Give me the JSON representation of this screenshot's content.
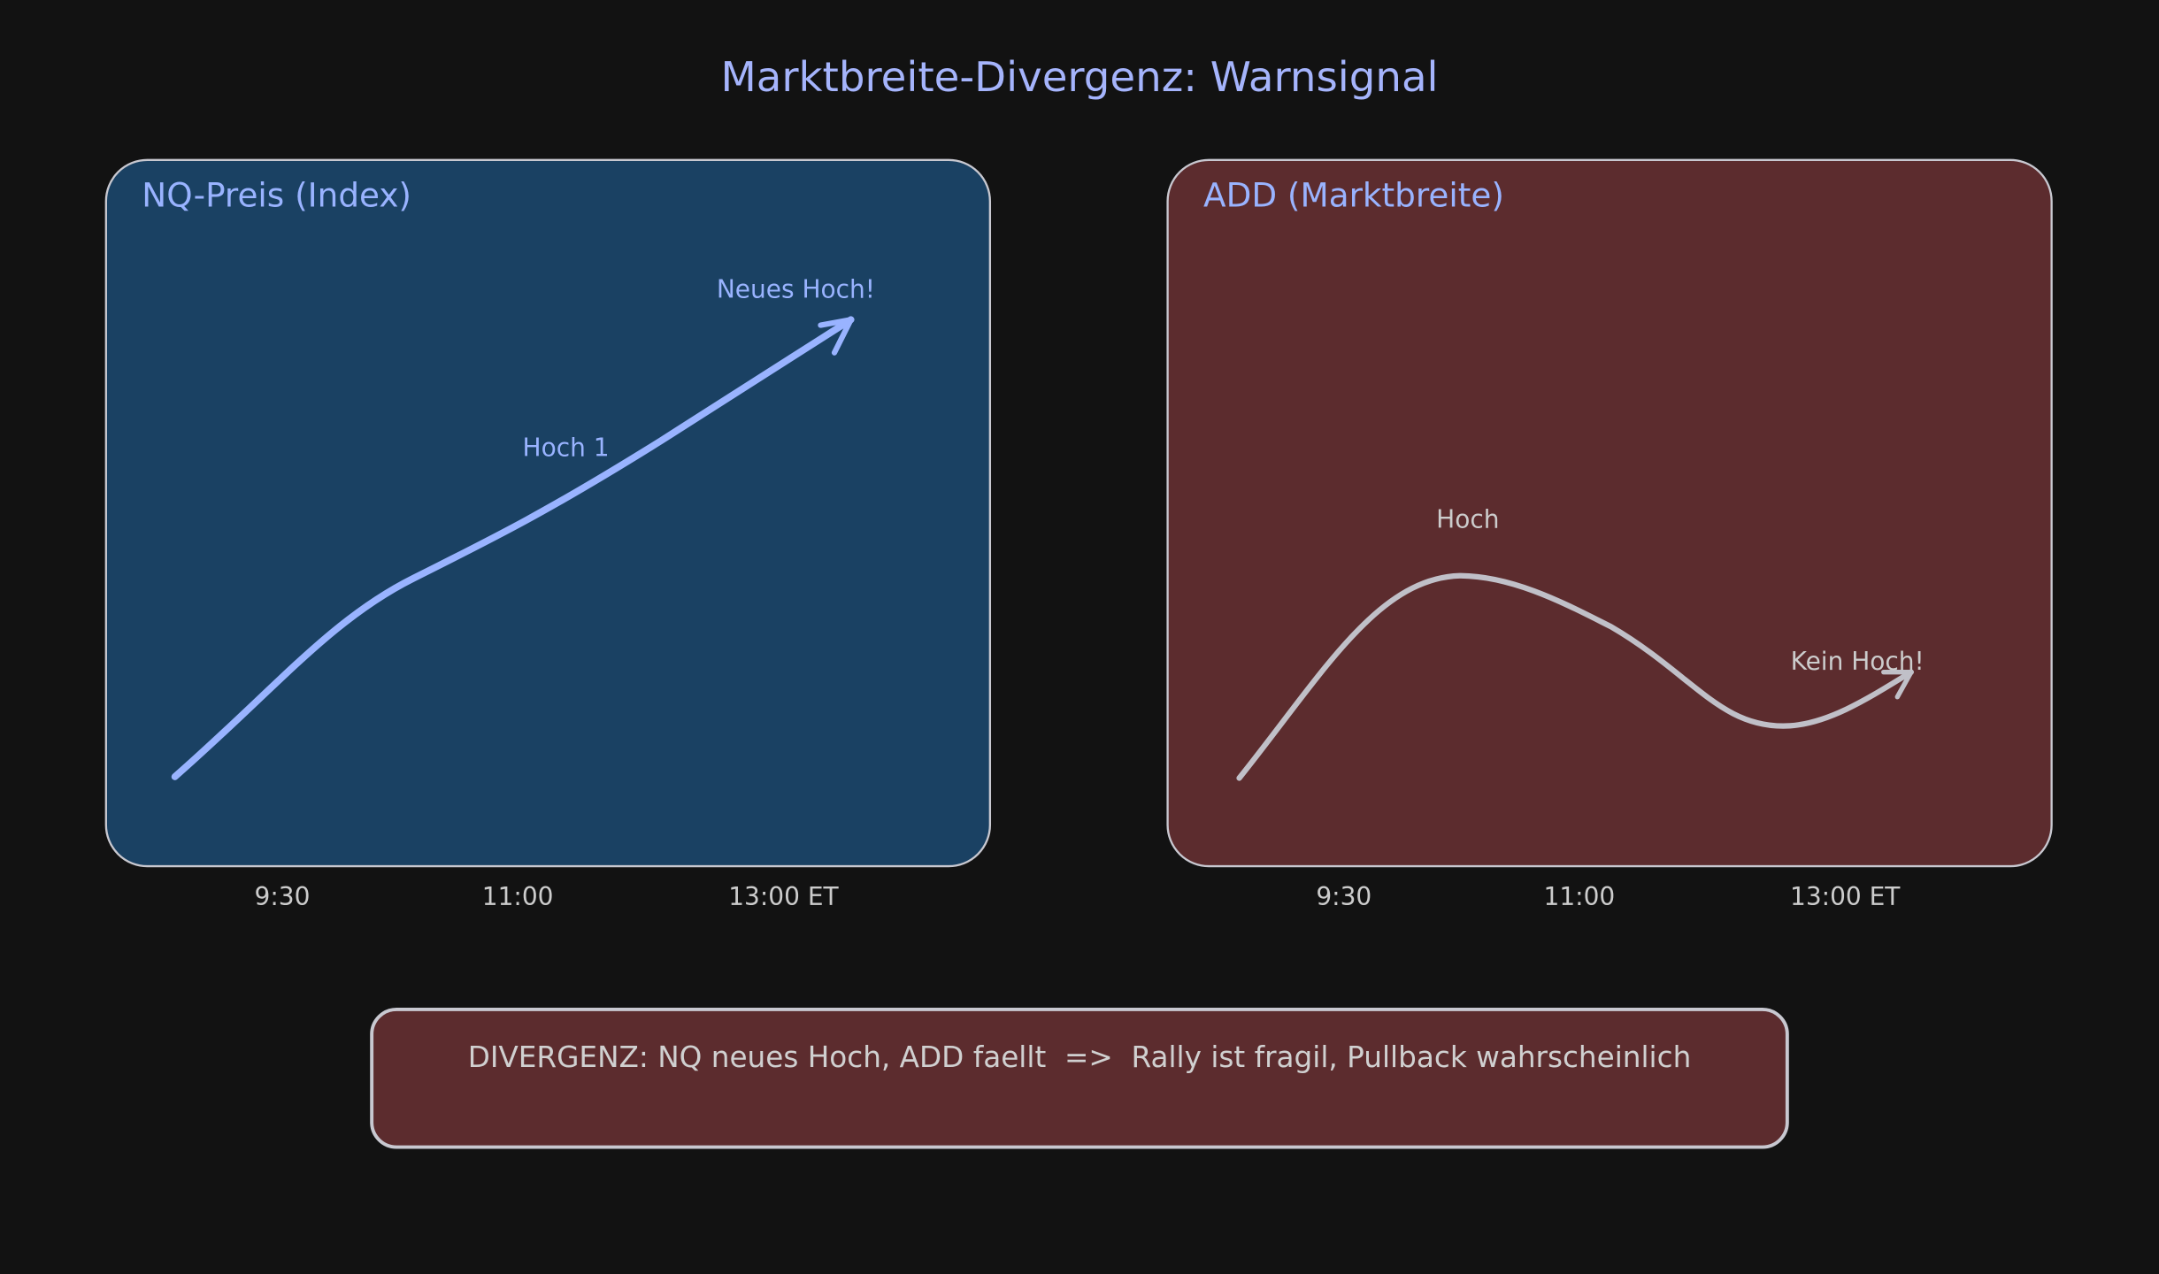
{
  "title": "Marktbreite-Divergenz: Warnsignal",
  "panels": [
    {
      "title": "NQ-Preis (Index)",
      "annotations": [
        "Hoch 1",
        "Neues Hoch!"
      ],
      "x_labels": [
        "9:30",
        "11:00",
        "13:00 ET"
      ]
    },
    {
      "title": "ADD (Marktbreite)",
      "annotations": [
        "Hoch",
        "Kein Hoch!"
      ],
      "x_labels": [
        "9:30",
        "11:00",
        "13:00 ET"
      ]
    }
  ],
  "footer": "DIVERGENZ: NQ neues Hoch, ADD faellt  =>  Rally ist fragil, Pullback wahrscheinlich"
}
